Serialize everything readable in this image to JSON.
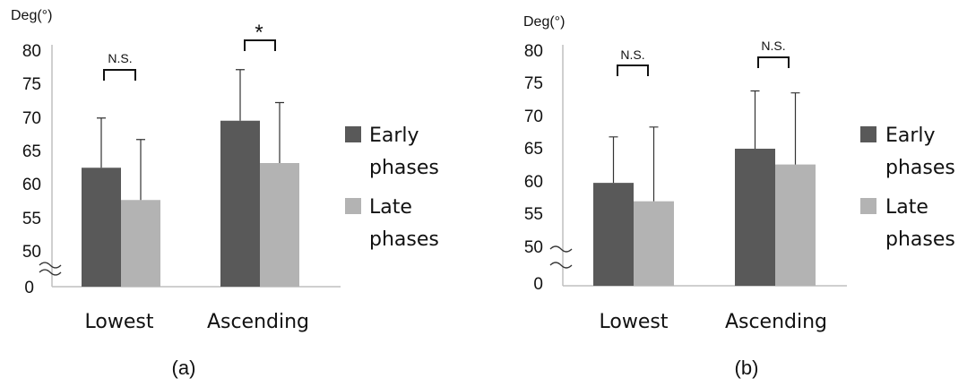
{
  "chart_data": [
    {
      "type": "bar",
      "caption": "(a)",
      "unit_label": "Deg(°)",
      "categories": [
        "Lowest",
        "Ascending"
      ],
      "y_ticks": [
        "80",
        "75",
        "70",
        "65",
        "60",
        "55",
        "50",
        "0"
      ],
      "ylim": [
        50,
        80
      ],
      "axis_break": true,
      "series": [
        {
          "name": "Early phases",
          "values": [
            62.5,
            69.5
          ],
          "errors": [
            7.4,
            7.6
          ],
          "color": "#595959"
        },
        {
          "name": "Late phases",
          "values": [
            57.7,
            63.2
          ],
          "errors": [
            9.0,
            9.0
          ],
          "color": "#b3b3b3"
        }
      ],
      "annotations": [
        "N.S.",
        "*"
      ],
      "legend_position": "right",
      "legend": {
        "early_line1": "Early",
        "early_line2": "phases",
        "late_line1": "Late",
        "late_line2": "phases"
      }
    },
    {
      "type": "bar",
      "caption": "(b)",
      "unit_label": "Deg(°)",
      "categories": [
        "Lowest",
        "Ascending"
      ],
      "y_ticks": [
        "80",
        "75",
        "70",
        "65",
        "60",
        "55",
        "50",
        "0"
      ],
      "ylim": [
        50,
        80
      ],
      "axis_break": true,
      "series": [
        {
          "name": "Early phases",
          "values": [
            59.8,
            65.0
          ],
          "errors": [
            7.0,
            8.8
          ],
          "color": "#595959"
        },
        {
          "name": "Late phases",
          "values": [
            57.0,
            62.6
          ],
          "errors": [
            11.3,
            10.9
          ],
          "color": "#b3b3b3"
        }
      ],
      "annotations": [
        "N.S.",
        "N.S."
      ],
      "legend_position": "right",
      "legend": {
        "early_line1": "Early",
        "early_line2": "phases",
        "late_line1": "Late",
        "late_line2": "phases"
      }
    }
  ]
}
